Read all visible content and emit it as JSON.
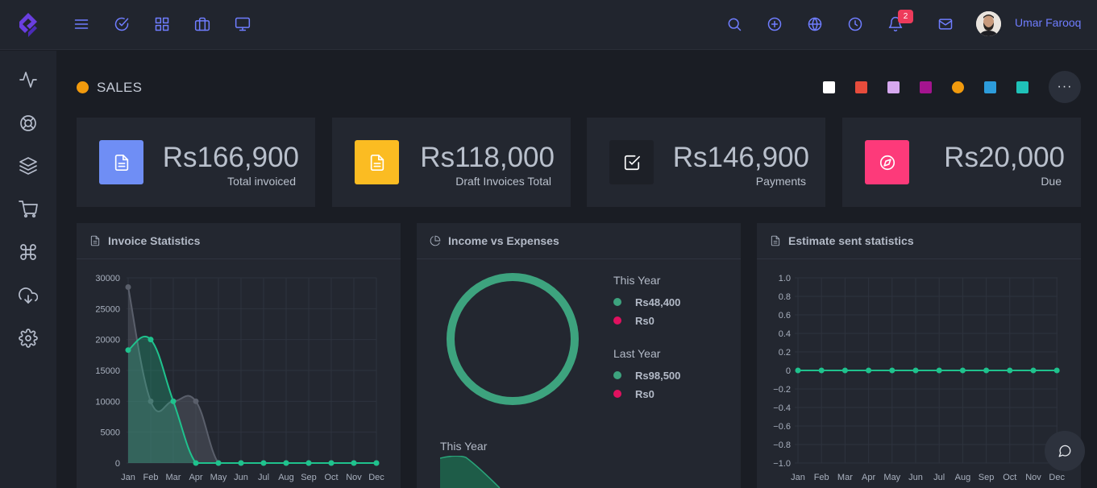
{
  "header": {
    "user_name": "Umar Farooq",
    "notification_count": "2",
    "left_icons": [
      "menu-icon",
      "check-circle-icon",
      "grid-icon",
      "briefcase-icon",
      "monitor-icon"
    ],
    "right_icons": [
      "search-icon",
      "plus-circle-icon",
      "globe-icon",
      "clock-icon",
      "bell-icon",
      "mail-icon"
    ]
  },
  "sidebar": {
    "icons": [
      "activity-icon",
      "lifebuoy-icon",
      "layers-icon",
      "cart-icon",
      "command-icon",
      "download-cloud-icon",
      "settings-icon"
    ]
  },
  "page": {
    "title": "SALES",
    "title_dot_color": "#f19a0d",
    "theme_swatches": [
      "#ffffff",
      "#e74c3c",
      "#d6a8ef",
      "#a4148f",
      "#f19a0d",
      "#2d9cdb",
      "#1fc2b8"
    ],
    "more_label": "···"
  },
  "stats": [
    {
      "value": "Rs166,900",
      "label": "Total invoiced",
      "icon": "file-text-icon",
      "color": "#6f8ef5"
    },
    {
      "value": "Rs118,000",
      "label": "Draft Invoices Total",
      "icon": "file-text-icon",
      "color": "#fbbc22"
    },
    {
      "value": "Rs146,900",
      "label": "Payments",
      "icon": "check-square-icon",
      "color": "#1d2027"
    },
    {
      "value": "Rs20,000",
      "label": "Due",
      "icon": "compass-icon",
      "color": "#fd3a7a"
    }
  ],
  "cards": {
    "invoice_title": "Invoice Statistics",
    "income_title": "Income vs Expenses",
    "estimate_title": "Estimate sent statistics"
  },
  "income": {
    "this_year_label": "This Year",
    "this_year_income": "Rs48,400",
    "this_year_expense": "Rs0",
    "last_year_label": "Last Year",
    "last_year_income": "Rs98,500",
    "last_year_expense": "Rs0",
    "income_color": "#3da37e",
    "expense_color": "#e0115f",
    "lower_chart_label": "This Year"
  },
  "chart_data": [
    {
      "type": "line",
      "title": "Invoice Statistics",
      "categories": [
        "Jan",
        "Feb",
        "Mar",
        "Apr",
        "May",
        "Jun",
        "Jul",
        "Aug",
        "Sep",
        "Oct",
        "Nov",
        "Dec"
      ],
      "ylim": [
        0,
        30000
      ],
      "yticks": [
        0,
        5000,
        10000,
        15000,
        20000,
        25000,
        30000
      ],
      "series": [
        {
          "color": "#1fc28d",
          "values": [
            18300,
            20000,
            10000,
            0,
            0,
            0,
            0,
            0,
            0,
            0,
            0,
            0
          ]
        },
        {
          "color": "#5a5f6b",
          "values": [
            28500,
            10000,
            10000,
            10000,
            0,
            0,
            0,
            0,
            0,
            0,
            0,
            0
          ]
        }
      ]
    },
    {
      "type": "pie",
      "title": "Income vs Expenses",
      "labels": [
        "Rs48,400",
        "Rs0"
      ],
      "values": [
        48400,
        0
      ],
      "colors": [
        "#3da37e",
        "#e0115f"
      ]
    },
    {
      "type": "line",
      "title": "Estimate sent statistics",
      "categories": [
        "Jan",
        "Feb",
        "Mar",
        "Apr",
        "May",
        "Jun",
        "Jul",
        "Aug",
        "Sep",
        "Oct",
        "Nov",
        "Dec"
      ],
      "ylim": [
        -1.0,
        1.0
      ],
      "yticks": [
        "1.0",
        "0.8",
        "0.6",
        "0.4",
        "0.2",
        "0",
        "−0.2",
        "−0.4",
        "−0.6",
        "−0.8",
        "−1.0"
      ],
      "series": [
        {
          "color": "#1fc28d",
          "values": [
            0,
            0,
            0,
            0,
            0,
            0,
            0,
            0,
            0,
            0,
            0,
            0
          ]
        }
      ]
    }
  ]
}
